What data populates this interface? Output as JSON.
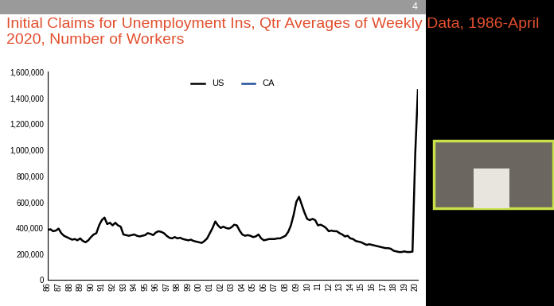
{
  "chart_data": {
    "type": "line",
    "title": "Initial Claims for Unemployment Ins, Qtr Averages of Weekly Data, 1986-April 2020, Number of Workers",
    "annotations": [
      "4"
    ],
    "categories": [
      "86",
      null,
      null,
      null,
      "87",
      null,
      null,
      null,
      "88",
      null,
      null,
      null,
      "89",
      null,
      null,
      null,
      "90",
      null,
      null,
      null,
      "91",
      null,
      null,
      null,
      "92",
      null,
      null,
      null,
      "93",
      null,
      null,
      null,
      "94",
      null,
      null,
      null,
      "95",
      null,
      null,
      null,
      "96",
      null,
      null,
      null,
      "97",
      null,
      null,
      null,
      "98",
      null,
      null,
      null,
      "99",
      null,
      null,
      null,
      "00",
      null,
      null,
      null,
      "01",
      null,
      null,
      null,
      "02",
      null,
      null,
      null,
      "03",
      null,
      null,
      null,
      "04",
      null,
      null,
      null,
      "05",
      null,
      null,
      null,
      "06",
      null,
      null,
      null,
      "07",
      null,
      null,
      null,
      "08",
      null,
      null,
      null,
      "09",
      null,
      null,
      null,
      "10",
      null,
      null,
      null,
      "11",
      null,
      null,
      null,
      "12",
      null,
      null,
      null,
      "13",
      null,
      null,
      null,
      "14",
      null,
      null,
      null,
      "15",
      null,
      null,
      null,
      "16",
      null,
      null,
      null,
      "17",
      null,
      null,
      null,
      "18",
      null,
      null,
      null,
      "19",
      null,
      null,
      null,
      "20",
      null
    ],
    "series": [
      {
        "name": "US",
        "color": "#000000",
        "values": [
          385000,
          390000,
          375000,
          380000,
          395000,
          360000,
          340000,
          330000,
          320000,
          310000,
          315000,
          305000,
          320000,
          300000,
          290000,
          305000,
          330000,
          350000,
          360000,
          420000,
          460000,
          480000,
          430000,
          440000,
          420000,
          440000,
          420000,
          410000,
          350000,
          345000,
          340000,
          345000,
          350000,
          340000,
          335000,
          340000,
          345000,
          360000,
          355000,
          345000,
          365000,
          375000,
          370000,
          360000,
          340000,
          325000,
          320000,
          330000,
          320000,
          325000,
          315000,
          310000,
          305000,
          310000,
          300000,
          295000,
          290000,
          285000,
          300000,
          320000,
          360000,
          400000,
          450000,
          420000,
          400000,
          410000,
          400000,
          395000,
          405000,
          425000,
          420000,
          380000,
          350000,
          340000,
          345000,
          340000,
          330000,
          335000,
          350000,
          320000,
          305000,
          310000,
          315000,
          315000,
          315000,
          320000,
          320000,
          330000,
          340000,
          370000,
          420000,
          500000,
          600000,
          640000,
          580000,
          520000,
          470000,
          460000,
          470000,
          460000,
          420000,
          425000,
          415000,
          400000,
          375000,
          380000,
          375000,
          375000,
          360000,
          350000,
          335000,
          340000,
          320000,
          315000,
          300000,
          295000,
          290000,
          280000,
          270000,
          275000,
          270000,
          265000,
          260000,
          255000,
          250000,
          245000,
          245000,
          240000,
          225000,
          220000,
          215000,
          215000,
          220000,
          215000,
          215000,
          218000,
          960000,
          1460000
        ]
      },
      {
        "name": "CA",
        "color": "#1f4e9c",
        "values": [
          null,
          null,
          null,
          null,
          null,
          null,
          null,
          null,
          null,
          null,
          null,
          null,
          null,
          null,
          null,
          null,
          null,
          null,
          null,
          null,
          null,
          null,
          null,
          null,
          null,
          null,
          null,
          null,
          null,
          null,
          null,
          null,
          null,
          null,
          null,
          null,
          null,
          null,
          null,
          null,
          null,
          null,
          null,
          null,
          null,
          null,
          null,
          null,
          null,
          null,
          null,
          null,
          null,
          null,
          null,
          null,
          null,
          null,
          null,
          null,
          null,
          null,
          null,
          null,
          null,
          null,
          null,
          null,
          null,
          null,
          null,
          null,
          null,
          null,
          null,
          null,
          null,
          null,
          null,
          null,
          null,
          null,
          null,
          null,
          null,
          null,
          null,
          null,
          null,
          null,
          null,
          null,
          null,
          null,
          null,
          null,
          null,
          null,
          null,
          null,
          null,
          null,
          null,
          null,
          null,
          null,
          null,
          null,
          null,
          null,
          null,
          null,
          null,
          null,
          null,
          null,
          null,
          null,
          null,
          null,
          null,
          null,
          null,
          null,
          null,
          null,
          null,
          null,
          null,
          null,
          null,
          null,
          null,
          null,
          null,
          null,
          null,
          null
        ]
      }
    ],
    "ylim": [
      0,
      1600000
    ],
    "yticks": [
      0,
      {
        "value": 200000,
        "label": "200,000"
      },
      {
        "value": 400000,
        "label": "400,000"
      },
      {
        "value": 600000,
        "label": "600,000"
      },
      {
        "value": 800000,
        "label": "800,000"
      },
      {
        "value": 1000000,
        "label": "1,000,000"
      },
      {
        "value": 1200000,
        "label": "1,200,000"
      },
      {
        "value": 1400000,
        "label": "1,400,000"
      },
      {
        "value": 1600000,
        "label": "1,600,000"
      }
    ],
    "legend": "upper center",
    "grid": false
  }
}
